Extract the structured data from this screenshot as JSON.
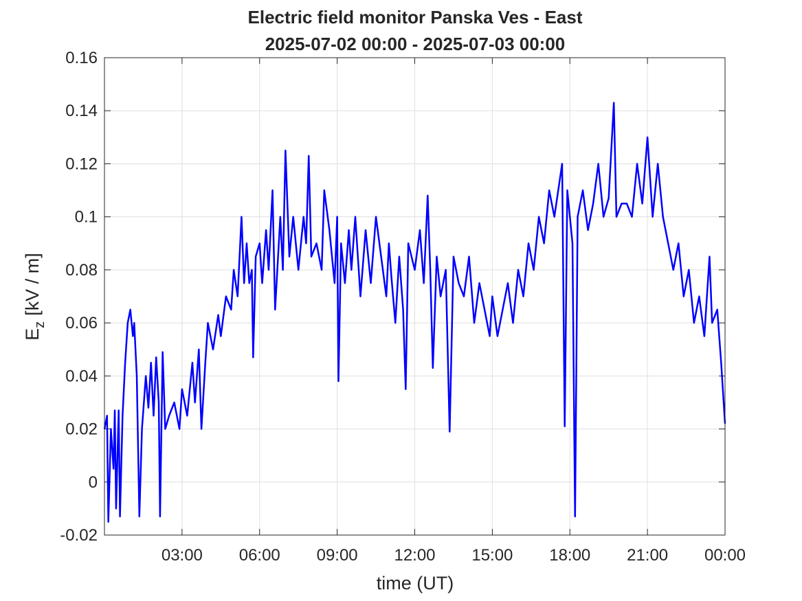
{
  "chart_data": {
    "type": "line",
    "title": "Electric field monitor Panska Ves - East",
    "subtitle": "2025-07-02 00:00 - 2025-07-03 00:00",
    "xlabel": "time (UT)",
    "ylabel_main": "E",
    "ylabel_sub": "z",
    "ylabel_unit": "[kV / m]",
    "xlim": [
      0,
      24
    ],
    "xticks": [
      {
        "value": 3,
        "label": "03:00"
      },
      {
        "value": 6,
        "label": "06:00"
      },
      {
        "value": 9,
        "label": "09:00"
      },
      {
        "value": 12,
        "label": "12:00"
      },
      {
        "value": 15,
        "label": "15:00"
      },
      {
        "value": 18,
        "label": "18:00"
      },
      {
        "value": 21,
        "label": "21:00"
      },
      {
        "value": 24,
        "label": "00:00"
      }
    ],
    "ylim": [
      -0.02,
      0.16
    ],
    "yticks": [
      -0.02,
      0,
      0.02,
      0.04,
      0.06,
      0.08,
      0.1,
      0.12,
      0.14,
      0.16
    ],
    "grid": true,
    "series": [
      {
        "color": "#0000ff",
        "x": [
          0,
          0.1,
          0.15,
          0.25,
          0.35,
          0.4,
          0.45,
          0.55,
          0.6,
          0.7,
          0.8,
          0.9,
          1.0,
          1.1,
          1.15,
          1.25,
          1.35,
          1.45,
          1.6,
          1.7,
          1.8,
          1.9,
          2.0,
          2.1,
          2.15,
          2.25,
          2.35,
          2.5,
          2.7,
          2.9,
          3.0,
          3.2,
          3.4,
          3.5,
          3.65,
          3.75,
          3.9,
          4.0,
          4.2,
          4.4,
          4.5,
          4.7,
          4.9,
          5.0,
          5.15,
          5.3,
          5.4,
          5.5,
          5.6,
          5.7,
          5.75,
          5.85,
          6.0,
          6.1,
          6.25,
          6.35,
          6.5,
          6.6,
          6.8,
          6.9,
          7.0,
          7.15,
          7.3,
          7.5,
          7.7,
          7.8,
          7.9,
          8.0,
          8.2,
          8.4,
          8.5,
          8.7,
          8.9,
          9.0,
          9.05,
          9.15,
          9.3,
          9.45,
          9.55,
          9.7,
          9.9,
          10.1,
          10.3,
          10.5,
          10.7,
          10.9,
          11.0,
          11.1,
          11.25,
          11.4,
          11.55,
          11.65,
          11.75,
          12.0,
          12.2,
          12.35,
          12.5,
          12.6,
          12.7,
          12.85,
          13.0,
          13.2,
          13.35,
          13.5,
          13.7,
          13.9,
          14.1,
          14.3,
          14.5,
          14.7,
          14.9,
          15.0,
          15.2,
          15.4,
          15.6,
          15.8,
          16.0,
          16.2,
          16.4,
          16.6,
          16.8,
          17.0,
          17.2,
          17.4,
          17.7,
          17.8,
          17.9,
          18.1,
          18.2,
          18.3,
          18.5,
          18.7,
          18.9,
          19.1,
          19.3,
          19.5,
          19.7,
          19.8,
          20.0,
          20.2,
          20.4,
          20.6,
          20.8,
          21.0,
          21.2,
          21.4,
          21.6,
          21.8,
          22.0,
          22.2,
          22.4,
          22.6,
          22.8,
          23.0,
          23.2,
          23.4,
          23.5,
          23.7,
          23.85,
          24.0
        ],
        "values": [
          0.02,
          0.025,
          -0.015,
          0.02,
          0.005,
          0.027,
          -0.01,
          0.027,
          -0.013,
          0.025,
          0.045,
          0.06,
          0.065,
          0.055,
          0.06,
          0.04,
          -0.013,
          0.02,
          0.04,
          0.028,
          0.045,
          0.025,
          0.047,
          0.03,
          -0.013,
          0.049,
          0.02,
          0.025,
          0.03,
          0.02,
          0.035,
          0.025,
          0.045,
          0.03,
          0.05,
          0.02,
          0.045,
          0.06,
          0.05,
          0.063,
          0.055,
          0.07,
          0.065,
          0.08,
          0.07,
          0.1,
          0.075,
          0.09,
          0.075,
          0.08,
          0.047,
          0.085,
          0.09,
          0.075,
          0.095,
          0.08,
          0.11,
          0.065,
          0.1,
          0.08,
          0.125,
          0.085,
          0.1,
          0.08,
          0.1,
          0.09,
          0.123,
          0.085,
          0.09,
          0.08,
          0.11,
          0.095,
          0.075,
          0.1,
          0.038,
          0.09,
          0.075,
          0.095,
          0.08,
          0.1,
          0.07,
          0.095,
          0.075,
          0.1,
          0.085,
          0.07,
          0.09,
          0.077,
          0.06,
          0.085,
          0.065,
          0.035,
          0.09,
          0.08,
          0.095,
          0.075,
          0.108,
          0.08,
          0.043,
          0.085,
          0.07,
          0.08,
          0.019,
          0.085,
          0.075,
          0.07,
          0.085,
          0.06,
          0.075,
          0.065,
          0.055,
          0.07,
          0.055,
          0.065,
          0.075,
          0.06,
          0.08,
          0.07,
          0.09,
          0.08,
          0.1,
          0.09,
          0.11,
          0.1,
          0.12,
          0.021,
          0.11,
          0.09,
          -0.013,
          0.1,
          0.11,
          0.095,
          0.105,
          0.12,
          0.1,
          0.107,
          0.143,
          0.1,
          0.105,
          0.105,
          0.1,
          0.12,
          0.105,
          0.13,
          0.1,
          0.12,
          0.1,
          0.09,
          0.08,
          0.09,
          0.07,
          0.08,
          0.06,
          0.07,
          0.055,
          0.085,
          0.06,
          0.065,
          0.045,
          0.022
        ]
      }
    ]
  }
}
